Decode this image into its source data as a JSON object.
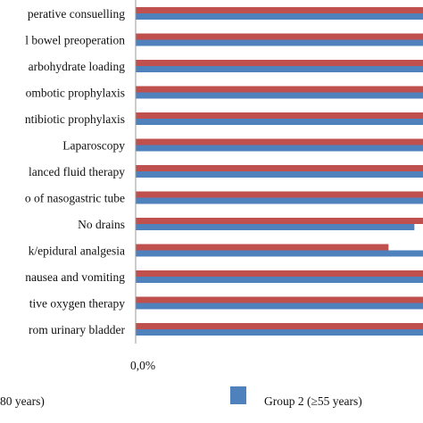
{
  "chart_data": {
    "type": "bar",
    "orientation": "horizontal",
    "categories": [
      "perative consuelling",
      "l bowel preoperation",
      "arbohydrate loading",
      "ombotic prophylaxis",
      "ntibiotic prophylaxis",
      "Laparoscopy",
      "lanced fluid therapy",
      "o of nasogastric tube",
      "No drains",
      "k/epidural analgesia",
      "nausea and vomiting",
      "tive oxygen therapy",
      "rom urinary bladder"
    ],
    "series": [
      {
        "name": "80 years)",
        "color": "#c0504d",
        "values": [
          100,
          100,
          100,
          100,
          100,
          100,
          100,
          100,
          100,
          88,
          100,
          100,
          100
        ]
      },
      {
        "name": "Group 2 (≥55 years)",
        "color": "#4f81bd",
        "values": [
          100,
          100,
          100,
          100,
          100,
          100,
          100,
          100,
          97,
          100,
          100,
          100,
          100
        ]
      }
    ],
    "x_tick_labels": [
      "0,0%"
    ],
    "legend_position": "bottom",
    "grid": false
  }
}
